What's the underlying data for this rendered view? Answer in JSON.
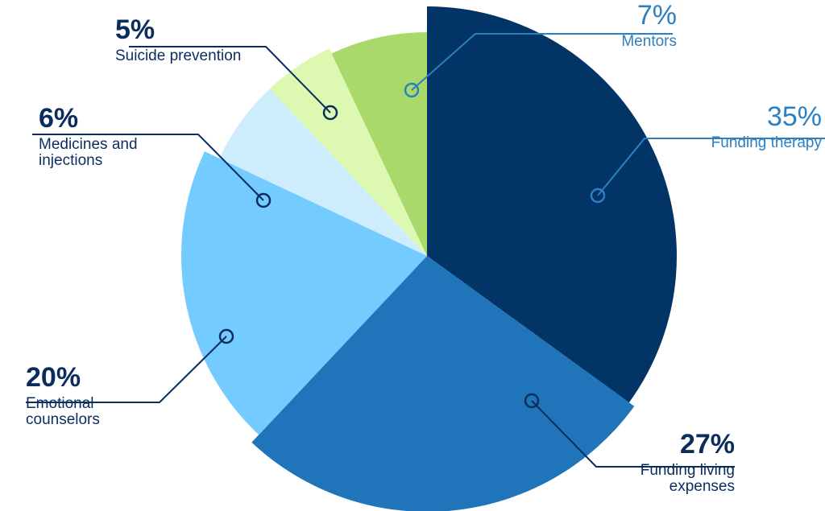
{
  "chart_data": {
    "type": "pie",
    "categories": [
      "Funding therapy",
      "Funding living expenses",
      "Emotional counselors",
      "Medicines and injections",
      "Suicide prevention",
      "Mentors"
    ],
    "values": [
      35,
      27,
      20,
      6,
      5,
      7
    ],
    "value_labels": [
      "35%",
      "27%",
      "20%",
      "6%",
      "5%",
      "7%"
    ],
    "colors": [
      "#023466",
      "#1f74ba",
      "#73cbff",
      "#cdecfc",
      "#ddf9b1",
      "#a8d96a"
    ]
  }
}
